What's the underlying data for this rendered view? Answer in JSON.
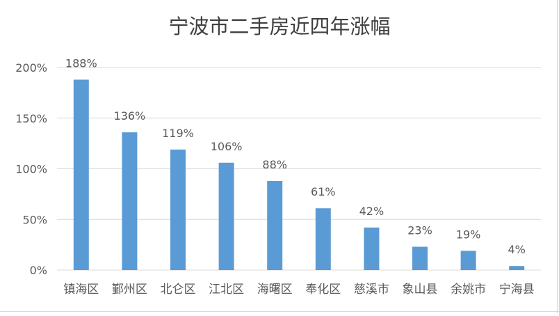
{
  "chart_data": {
    "type": "bar",
    "title": "宁波市二手房近四年涨幅",
    "categories": [
      "镇海区",
      "鄞州区",
      "北仑区",
      "江北区",
      "海曙区",
      "奉化区",
      "慈溪市",
      "象山县",
      "余姚市",
      "宁海县"
    ],
    "values": [
      188,
      136,
      119,
      106,
      88,
      61,
      42,
      23,
      19,
      4
    ],
    "data_labels": [
      "188%",
      "136%",
      "119%",
      "106%",
      "88%",
      "61%",
      "42%",
      "23%",
      "19%",
      "4%"
    ],
    "y_ticks": [
      0,
      50,
      100,
      150,
      200
    ],
    "y_tick_labels": [
      "0%",
      "50%",
      "100%",
      "150%",
      "200%"
    ],
    "ylim": [
      0,
      200
    ],
    "xlabel": "",
    "ylabel": "",
    "grid": true,
    "legend": "none",
    "colors": {
      "bar": "#5b9bd5",
      "grid": "#d9d9d9",
      "text": "#595959",
      "title": "#404040"
    }
  }
}
